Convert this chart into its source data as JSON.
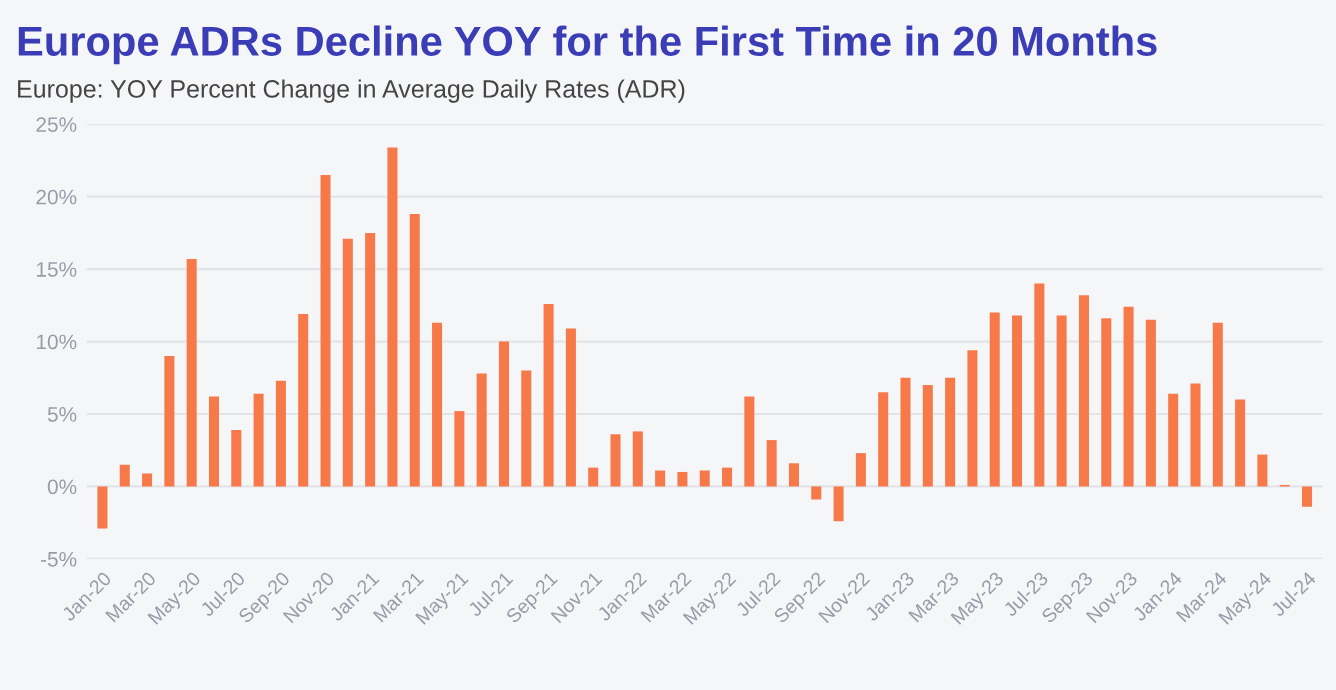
{
  "chart_data": {
    "type": "bar",
    "title": "Europe ADRs Decline YOY for the First Time in 20 Months",
    "subtitle": "Europe: YOY Percent Change in Average Daily Rates (ADR)",
    "categories": [
      "Jan-20",
      null,
      "Mar-20",
      null,
      "May-20",
      null,
      "Jul-20",
      null,
      "Sep-20",
      null,
      "Nov-20",
      null,
      "Jan-21",
      null,
      "Mar-21",
      null,
      "May-21",
      null,
      "Jul-21",
      null,
      "Sep-21",
      null,
      "Nov-21",
      null,
      "Jan-22",
      null,
      "Mar-22",
      null,
      "May-22",
      null,
      "Jul-22",
      null,
      "Sep-22",
      null,
      "Nov-22",
      null,
      "Jan-23",
      null,
      "Mar-23",
      null,
      "May-23",
      null,
      "Jul-23",
      null,
      "Sep-23",
      null,
      "Nov-23",
      null,
      "Jan-24",
      null,
      "Mar-24",
      null,
      "May-24",
      null,
      "Jul-24"
    ],
    "values": [
      -2.9,
      1.5,
      0.9,
      9.0,
      15.7,
      6.2,
      3.9,
      6.4,
      7.3,
      11.9,
      21.5,
      17.1,
      17.5,
      23.4,
      18.8,
      11.3,
      5.2,
      7.8,
      10.0,
      8.0,
      12.6,
      10.9,
      1.3,
      3.6,
      3.8,
      1.1,
      1.0,
      1.1,
      1.3,
      6.2,
      3.2,
      1.6,
      -0.9,
      -2.4,
      2.3,
      6.5,
      7.5,
      7.0,
      7.5,
      9.4,
      12.0,
      11.8,
      14.0,
      11.8,
      13.2,
      11.6,
      12.4,
      11.5,
      6.4,
      7.1,
      11.3,
      6.0,
      2.2,
      0.1,
      -1.4
    ],
    "color": "#f7794a",
    "ylim": [
      -5,
      25
    ],
    "yticks": [
      {
        "value": -5,
        "label": "-5%"
      },
      {
        "value": 0,
        "label": "0%"
      },
      {
        "value": 5,
        "label": "5%"
      },
      {
        "value": 10,
        "label": "10%"
      },
      {
        "value": 15,
        "label": "15%"
      },
      {
        "value": 20,
        "label": "20%"
      },
      {
        "value": 25,
        "label": "25%"
      }
    ],
    "grid": "y",
    "legend": false
  }
}
